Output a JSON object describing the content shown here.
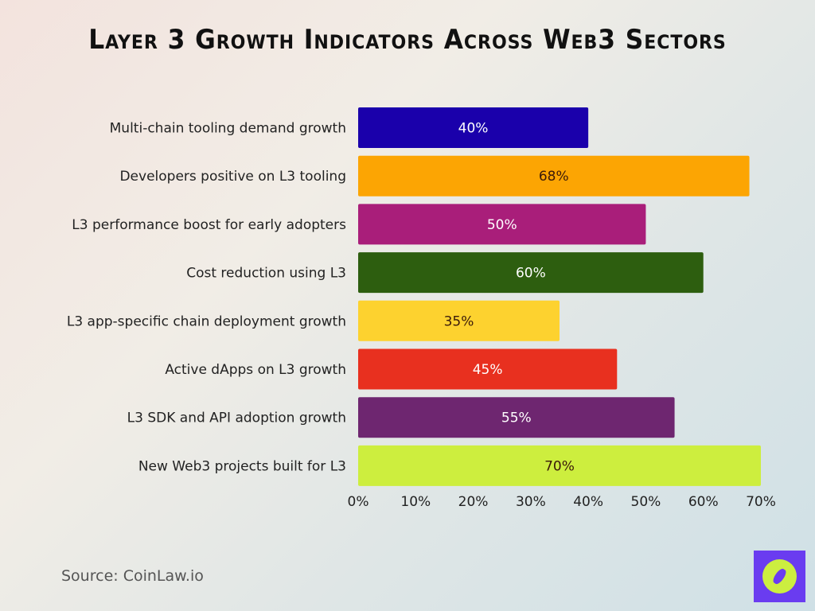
{
  "chart_data": {
    "type": "bar",
    "orientation": "horizontal",
    "title": "Layer 3 Growth Indicators Across Web3 Sectors",
    "categories": [
      "Multi-chain tooling demand growth",
      "Developers positive on L3 tooling",
      "L3 performance boost for early adopters",
      "Cost reduction using L3",
      "L3 app-specific chain deployment growth",
      "Active dApps on L3 growth",
      "L3 SDK and API adoption growth",
      "New Web3 projects built for L3"
    ],
    "values": [
      40,
      68,
      50,
      60,
      35,
      45,
      55,
      70
    ],
    "data_labels": [
      "40%",
      "68%",
      "50%",
      "60%",
      "35%",
      "45%",
      "55%",
      "70%"
    ],
    "colors": [
      "#1a00ab",
      "#fca503",
      "#a91e7a",
      "#2d5e0f",
      "#fdd22f",
      "#e8301f",
      "#6e2670",
      "#cdee3e"
    ],
    "label_colors": [
      "#ffffff",
      "#3a1a0a",
      "#ffffff",
      "#ffffff",
      "#3a1a0a",
      "#ffffff",
      "#ffffff",
      "#3a1a0a"
    ],
    "xticks": [
      "0%",
      "10%",
      "20%",
      "30%",
      "40%",
      "50%",
      "60%",
      "70%"
    ],
    "xlim": [
      0,
      70
    ],
    "xlabel": "",
    "ylabel": "",
    "grid": false,
    "legend": "none"
  },
  "footer": {
    "source": "Source: CoinLaw.io",
    "logo_icon": "compass-icon"
  }
}
